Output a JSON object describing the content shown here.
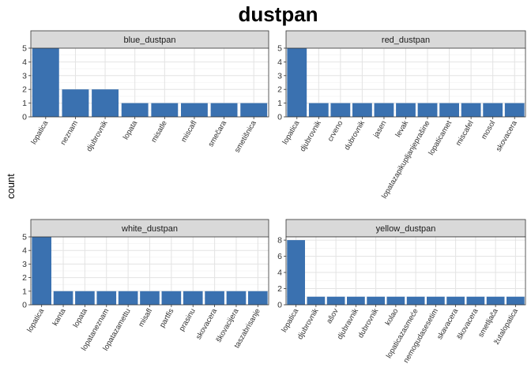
{
  "chart_data": {
    "type": "bar",
    "title": "dustpan",
    "ylabel": "count",
    "xlabel": "",
    "bar_color": "#3A71B0",
    "strip_color": "#D9D9D9",
    "grid": true,
    "panels": [
      {
        "name": "blue_dustpan",
        "categories": [
          "lopatica",
          "neznam",
          "djubrovnik",
          "lopata",
          "misatle",
          "miscafl",
          "smečara",
          "smetišnica"
        ],
        "values": [
          5,
          2,
          2,
          1,
          1,
          1,
          1,
          1
        ],
        "ylim": [
          0,
          5
        ],
        "yticks": [
          0,
          1,
          2,
          3,
          4,
          5
        ]
      },
      {
        "name": "red_dustpan",
        "categories": [
          "lopatica",
          "djubrovnik",
          "crveno",
          "dubrovnik",
          "jasen",
          "levak",
          "lopatazapikupljanjeprašine",
          "lopaticamet",
          "miscafel",
          "mosol",
          "skovacera"
        ],
        "values": [
          5,
          1,
          1,
          1,
          1,
          1,
          1,
          1,
          1,
          1,
          1
        ],
        "ylim": [
          0,
          5
        ],
        "yticks": [
          0,
          1,
          2,
          3,
          4,
          5
        ]
      },
      {
        "name": "white_dustpan",
        "categories": [
          "lopatica",
          "kanta",
          "lopata",
          "lopataneznam",
          "lopatazamettu",
          "misafl",
          "partfis",
          "prasinu",
          "skovacera",
          "škovacijera",
          "taszabrisanje"
        ],
        "values": [
          5,
          1,
          1,
          1,
          1,
          1,
          1,
          1,
          1,
          1,
          1
        ],
        "ylim": [
          0,
          5
        ],
        "yticks": [
          0,
          1,
          2,
          3,
          4,
          5
        ]
      },
      {
        "name": "yellow_dustpan",
        "categories": [
          "lopatica",
          "djubrovnik",
          "ašov",
          "djubravnik",
          "dubrovnik",
          "kolao",
          "lopaticazasmeće",
          "nemogudasesetim",
          "skavacera",
          "škovacera",
          "smetljača",
          "žutalopatica"
        ],
        "values": [
          8,
          1,
          1,
          1,
          1,
          1,
          1,
          1,
          1,
          1,
          1,
          1
        ],
        "ylim": [
          0,
          8.4
        ],
        "yticks": [
          0,
          2,
          4,
          6,
          8
        ]
      }
    ]
  }
}
